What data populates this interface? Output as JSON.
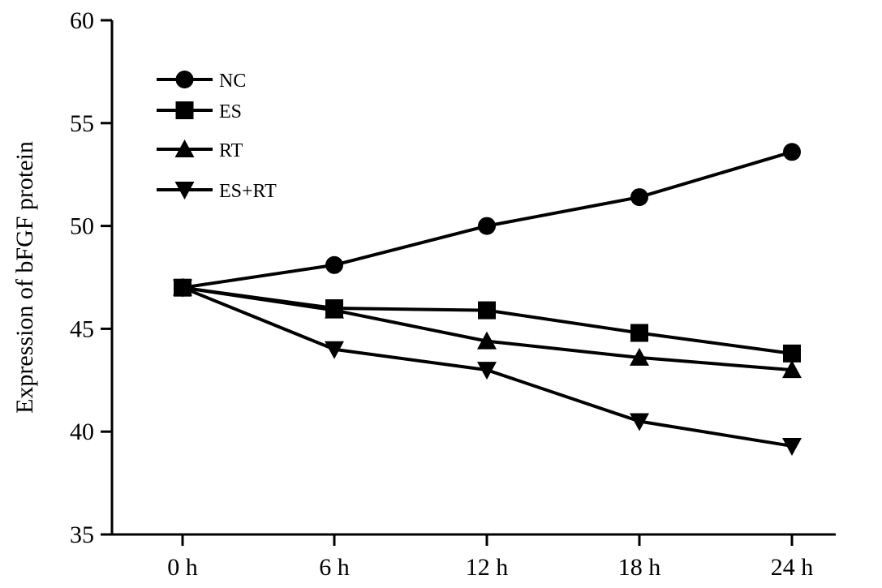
{
  "chart_data": {
    "type": "line",
    "title": "",
    "xlabel": "",
    "ylabel": "Expression of bFGF protein",
    "categories": [
      "0 h",
      "6 h",
      "12 h",
      "18 h",
      "24 h"
    ],
    "ylim": [
      35,
      60
    ],
    "yticks": [
      35,
      40,
      45,
      50,
      55,
      60
    ],
    "grid": false,
    "legend_position": "top-left",
    "series": [
      {
        "name": "NC",
        "marker": "circle",
        "values": [
          47.0,
          48.1,
          50.0,
          51.4,
          53.6
        ]
      },
      {
        "name": "ES",
        "marker": "square",
        "values": [
          47.0,
          46.0,
          45.9,
          44.8,
          43.8
        ]
      },
      {
        "name": "RT",
        "marker": "triangle-up",
        "values": [
          47.0,
          45.9,
          44.4,
          43.6,
          43.0
        ]
      },
      {
        "name": "ES+RT",
        "marker": "triangle-down",
        "values": [
          47.0,
          44.0,
          43.0,
          40.5,
          39.3
        ]
      }
    ],
    "colors": {
      "line": "#000000",
      "marker": "#000000"
    }
  }
}
